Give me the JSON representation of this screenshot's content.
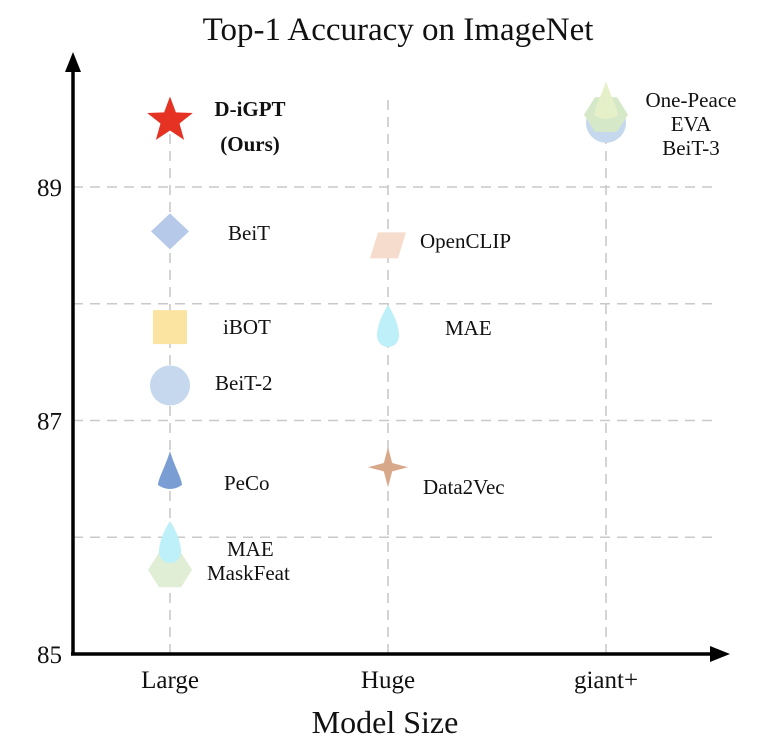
{
  "chart_data": {
    "type": "scatter",
    "title": "Top-1 Accuracy on ImageNet",
    "xlabel": "Model Size",
    "ylabel": "",
    "categories": [
      "Large",
      "Huge",
      "giant+"
    ],
    "ylim": [
      85,
      89.2
    ],
    "yticks": [
      85,
      87,
      89
    ],
    "grid": true,
    "points": [
      {
        "label": "D-iGPT",
        "label2": "(Ours)",
        "x": "Large",
        "y": 89.57,
        "marker": "star",
        "color": "#e53222",
        "bold": true
      },
      {
        "label": "BeiT",
        "x": "Large",
        "y": 88.62,
        "marker": "diamond",
        "color": "#b7c9e8"
      },
      {
        "label": "iBOT",
        "x": "Large",
        "y": 87.8,
        "marker": "square",
        "color": "#fbe3a2"
      },
      {
        "label": "BeiT-2",
        "x": "Large",
        "y": 87.3,
        "marker": "circle",
        "color": "#c6d8ee"
      },
      {
        "label": "PeCo",
        "x": "Large",
        "y": 86.55,
        "marker": "cone",
        "color": "#7a9ed4"
      },
      {
        "label": "MAE",
        "x": "Large",
        "y": 85.95,
        "marker": "teardrop",
        "color": "#bdf0f8"
      },
      {
        "label": "MaskFeat",
        "x": "Large",
        "y": 85.72,
        "marker": "hexagon",
        "color": "#dfeed4"
      },
      {
        "label": "OpenCLIP",
        "x": "Huge",
        "y": 88.5,
        "marker": "parallelogram",
        "color": "#f6dccc"
      },
      {
        "label": "MAE",
        "x": "Huge",
        "y": 87.8,
        "marker": "teardrop",
        "color": "#bdf0f8"
      },
      {
        "label": "Data2Vec",
        "x": "Huge",
        "y": 86.6,
        "marker": "star4",
        "color": "#d8a88a"
      },
      {
        "label": "One-Peace",
        "x": "giant+",
        "y": 89.72,
        "marker": "cone",
        "color": "#e6f0c8"
      },
      {
        "label": "EVA",
        "x": "giant+",
        "y": 89.62,
        "marker": "hexagon",
        "color": "#d5e8c8"
      },
      {
        "label": "BeiT-3",
        "x": "giant+",
        "y": 89.55,
        "marker": "circle",
        "color": "#c6d8ee"
      }
    ]
  }
}
